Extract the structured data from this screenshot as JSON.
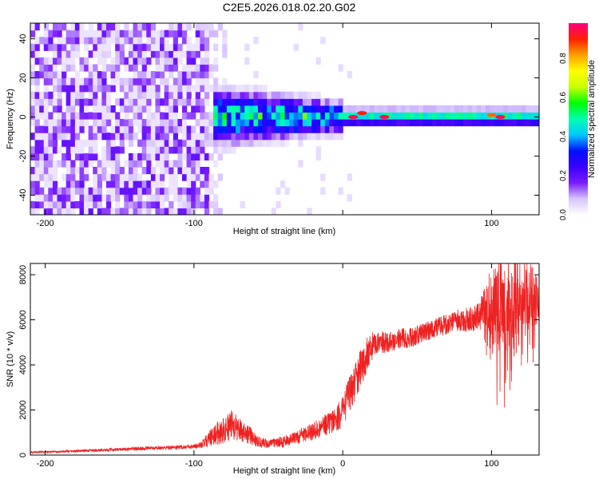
{
  "figure": {
    "title": "C2E5.2026.018.02.20.G02"
  },
  "chart_data": [
    {
      "type": "heatmap",
      "xlabel": "Height of straight line (km)",
      "ylabel": "Frequency (Hz)",
      "xlim": [
        -210,
        132
      ],
      "ylim": [
        -50,
        48
      ],
      "xticks": [
        -200,
        -100,
        0,
        100
      ],
      "xtick_labels": [
        "-200",
        "-100",
        "",
        "100"
      ],
      "yticks": [
        -40,
        -20,
        0,
        20,
        40
      ],
      "ytick_labels": [
        "-40",
        "-20",
        "0",
        "20",
        "40"
      ],
      "colorbar": {
        "label": "Normalized spectral amplitude",
        "range": [
          0,
          0.98
        ],
        "ticks": [
          0.0,
          0.2,
          0.4,
          0.6,
          0.8
        ],
        "tick_labels": [
          "0.0",
          "0.2",
          "0.4",
          "0.6",
          "0.8"
        ],
        "colormap": [
          "#ffffff",
          "#d8c4ff",
          "#7a1cff",
          "#3a00ff",
          "#0010ff",
          "#00c8ff",
          "#00ffb0",
          "#00ff00",
          "#c8ff00",
          "#ffff00",
          "#ffa000",
          "#ff2000",
          "#ff0080"
        ]
      },
      "regions": [
        {
          "x_range": [
            -210,
            -90
          ],
          "y_range": [
            -50,
            48
          ],
          "level": 0.15,
          "desc": "broadband noise"
        },
        {
          "x_range": [
            -90,
            -78
          ],
          "y_range": [
            -50,
            48
          ],
          "level": 0.06,
          "desc": "fading noise"
        },
        {
          "x_range": [
            -88,
            132
          ],
          "y_center": 0,
          "level": 0.5,
          "desc": "carrier line"
        }
      ],
      "line_peaks": [
        {
          "x": 7,
          "y": 0,
          "value": 0.95
        },
        {
          "x": 13,
          "y": 2,
          "value": 0.9
        },
        {
          "x": 28,
          "y": 0,
          "value": 0.95
        },
        {
          "x": 100,
          "y": 1,
          "value": 0.85
        },
        {
          "x": 106,
          "y": 0,
          "value": 0.95
        }
      ],
      "grid": false
    },
    {
      "type": "line",
      "xlabel": "Height of straight line (km)",
      "ylabel": "SNR (10 * v/v)",
      "xlim": [
        -210,
        132
      ],
      "ylim": [
        0,
        8500
      ],
      "xticks": [
        -200,
        -100,
        0,
        100
      ],
      "xtick_labels": [
        "-200",
        "-100",
        "0",
        "100"
      ],
      "yticks": [
        0,
        2000,
        4000,
        6000,
        8000
      ],
      "ytick_labels": [
        "0",
        "2000",
        "4000",
        "6000",
        "8000"
      ],
      "color": "#ee2222",
      "series": [
        {
          "x": [
            -210,
            -190,
            -170,
            -150,
            -130,
            -110,
            -100,
            -95,
            -90,
            -85,
            -80,
            -75,
            -70,
            -65,
            -60,
            -55,
            -50,
            -45,
            -40,
            -35,
            -30,
            -25,
            -20,
            -15,
            -10,
            -5,
            0,
            3,
            6,
            10,
            14,
            18,
            22,
            26,
            30,
            35,
            40,
            45,
            50,
            55,
            60,
            65,
            70,
            75,
            80,
            85,
            90,
            95,
            98,
            100,
            102,
            105,
            110,
            115,
            120,
            125,
            132
          ],
          "y": [
            120,
            150,
            200,
            250,
            300,
            350,
            380,
            450,
            700,
            950,
            1100,
            1350,
            1150,
            1000,
            750,
            550,
            500,
            550,
            600,
            700,
            800,
            950,
            1050,
            1250,
            1400,
            1600,
            1900,
            2500,
            3000,
            3500,
            4100,
            4700,
            5000,
            5000,
            5000,
            5100,
            5200,
            5200,
            5300,
            5500,
            5600,
            5700,
            5800,
            5900,
            6000,
            6000,
            6100,
            6500,
            6900,
            6300,
            6400,
            6700,
            6800,
            6900,
            6900,
            7000,
            7100
          ],
          "noise": [
            40,
            50,
            60,
            70,
            80,
            90,
            100,
            150,
            350,
            500,
            600,
            650,
            550,
            450,
            350,
            250,
            200,
            200,
            250,
            250,
            300,
            350,
            400,
            450,
            500,
            550,
            700,
            800,
            900,
            900,
            800,
            700,
            500,
            500,
            450,
            450,
            450,
            450,
            450,
            450,
            450,
            450,
            450,
            500,
            500,
            550,
            600,
            900,
            1300,
            1800,
            2000,
            2200,
            2200,
            2000,
            1800,
            1500,
            1200
          ]
        }
      ],
      "grid": false
    }
  ]
}
